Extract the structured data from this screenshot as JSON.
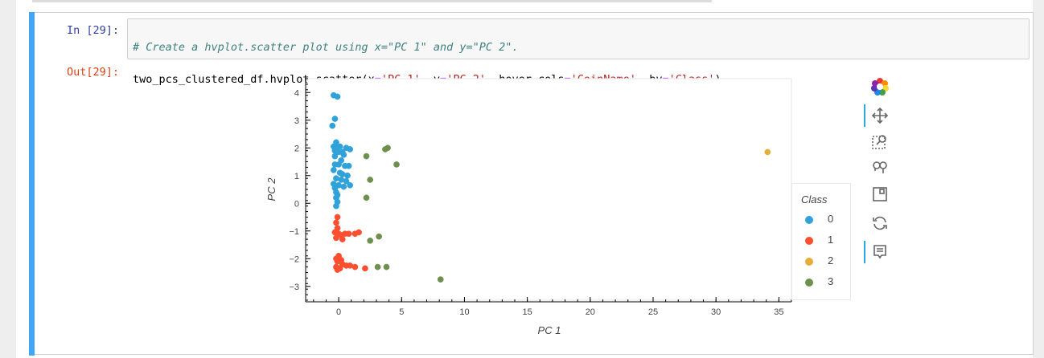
{
  "notebook": {
    "in_prompt": "In [29]:",
    "out_prompt": "Out[29]:",
    "code_line1": "# Create a hvplot.scatter plot using x=\"PC 1\" and y=\"PC 2\".",
    "code_line2_parts": [
      {
        "t": "two_pcs_clustered_df.hvplot.scatter(x",
        "c": "plain"
      },
      {
        "t": "=",
        "c": "op"
      },
      {
        "t": "'PC 1'",
        "c": "str"
      },
      {
        "t": ", y",
        "c": "plain"
      },
      {
        "t": "=",
        "c": "op"
      },
      {
        "t": "'PC 2'",
        "c": "str"
      },
      {
        "t": ", hover_cols",
        "c": "plain"
      },
      {
        "t": "=",
        "c": "op"
      },
      {
        "t": "'CoinName'",
        "c": "str"
      },
      {
        "t": ", by",
        "c": "plain"
      },
      {
        "t": "=",
        "c": "op"
      },
      {
        "t": "'Class'",
        "c": "str"
      },
      {
        "t": ")",
        "c": "plain"
      }
    ]
  },
  "legend": {
    "title": "Class",
    "items": [
      {
        "label": "0",
        "color": "#30a2da"
      },
      {
        "label": "1",
        "color": "#fc4f30"
      },
      {
        "label": "2",
        "color": "#e5ae38"
      },
      {
        "label": "3",
        "color": "#6d904f"
      }
    ]
  },
  "toolbar": {
    "tools": [
      "bokeh-logo-icon",
      "pan-icon",
      "box-zoom-icon",
      "wheel-zoom-icon",
      "save-icon",
      "reset-icon",
      "hover-icon"
    ]
  },
  "chart_data": {
    "type": "scatter",
    "xlabel": "PC 1",
    "ylabel": "PC 2",
    "xlim": [
      -2.5,
      36.0
    ],
    "ylim": [
      -3.5,
      4.5
    ],
    "xticks": [
      0,
      5,
      10,
      15,
      20,
      25,
      30,
      35
    ],
    "yticks": [
      -3,
      -2,
      -1,
      0,
      1,
      2,
      3,
      4
    ],
    "grid": false,
    "legend_position": "right",
    "series": [
      {
        "name": "0",
        "color": "#30a2da",
        "points": [
          [
            -0.4,
            3.9
          ],
          [
            -0.1,
            3.85
          ],
          [
            -0.3,
            3.05
          ],
          [
            -0.5,
            2.8
          ],
          [
            -0.2,
            2.2
          ],
          [
            -0.4,
            2.05
          ],
          [
            -0.1,
            2.0
          ],
          [
            0.1,
            2.05
          ],
          [
            0.6,
            2.0
          ],
          [
            0.9,
            1.95
          ],
          [
            0.4,
            1.75
          ],
          [
            -0.3,
            1.7
          ],
          [
            0.2,
            1.55
          ],
          [
            -0.3,
            1.4
          ],
          [
            0.0,
            1.4
          ],
          [
            0.5,
            1.35
          ],
          [
            0.8,
            1.35
          ],
          [
            -0.4,
            1.2
          ],
          [
            0.1,
            1.1
          ],
          [
            0.3,
            1.05
          ],
          [
            0.7,
            1.0
          ],
          [
            -0.2,
            0.9
          ],
          [
            0.2,
            0.85
          ],
          [
            0.6,
            0.8
          ],
          [
            -0.4,
            0.7
          ],
          [
            0.0,
            0.65
          ],
          [
            0.4,
            0.6
          ],
          [
            0.9,
            0.65
          ],
          [
            -0.3,
            0.55
          ],
          [
            -0.2,
            0.4
          ],
          [
            -0.1,
            0.3
          ],
          [
            -0.2,
            0.2
          ],
          [
            -0.1,
            0.05
          ],
          [
            -0.2,
            -0.1
          ],
          [
            -0.3,
            1.9
          ],
          [
            0.0,
            1.85
          ],
          [
            0.3,
            1.85
          ]
        ]
      },
      {
        "name": "1",
        "color": "#fc4f30",
        "points": [
          [
            -0.1,
            -0.5
          ],
          [
            -0.2,
            -0.7
          ],
          [
            -0.1,
            -0.9
          ],
          [
            -0.3,
            -1.05
          ],
          [
            0.0,
            -1.1
          ],
          [
            0.2,
            -1.15
          ],
          [
            0.5,
            -1.1
          ],
          [
            0.8,
            -1.1
          ],
          [
            1.3,
            -1.1
          ],
          [
            1.6,
            -1.05
          ],
          [
            -0.2,
            -1.25
          ],
          [
            0.3,
            -1.3
          ],
          [
            0.0,
            -1.9
          ],
          [
            -0.2,
            -2.0
          ],
          [
            0.2,
            -2.05
          ],
          [
            -0.1,
            -2.1
          ],
          [
            0.3,
            -2.2
          ],
          [
            0.6,
            -2.25
          ],
          [
            0.9,
            -2.25
          ],
          [
            -0.2,
            -2.3
          ],
          [
            0.1,
            -2.35
          ],
          [
            1.3,
            -2.3
          ],
          [
            2.1,
            -2.35
          ],
          [
            -0.1,
            -2.4
          ]
        ]
      },
      {
        "name": "2",
        "color": "#e5ae38",
        "points": [
          [
            34.1,
            1.85
          ]
        ]
      },
      {
        "name": "3",
        "color": "#6d904f",
        "points": [
          [
            3.7,
            1.95
          ],
          [
            3.9,
            2.0
          ],
          [
            2.2,
            1.7
          ],
          [
            4.6,
            1.4
          ],
          [
            2.5,
            0.85
          ],
          [
            2.2,
            0.2
          ],
          [
            3.2,
            -1.2
          ],
          [
            2.5,
            -1.35
          ],
          [
            3.1,
            -2.3
          ],
          [
            3.8,
            -2.3
          ],
          [
            8.1,
            -2.75
          ]
        ]
      }
    ]
  }
}
